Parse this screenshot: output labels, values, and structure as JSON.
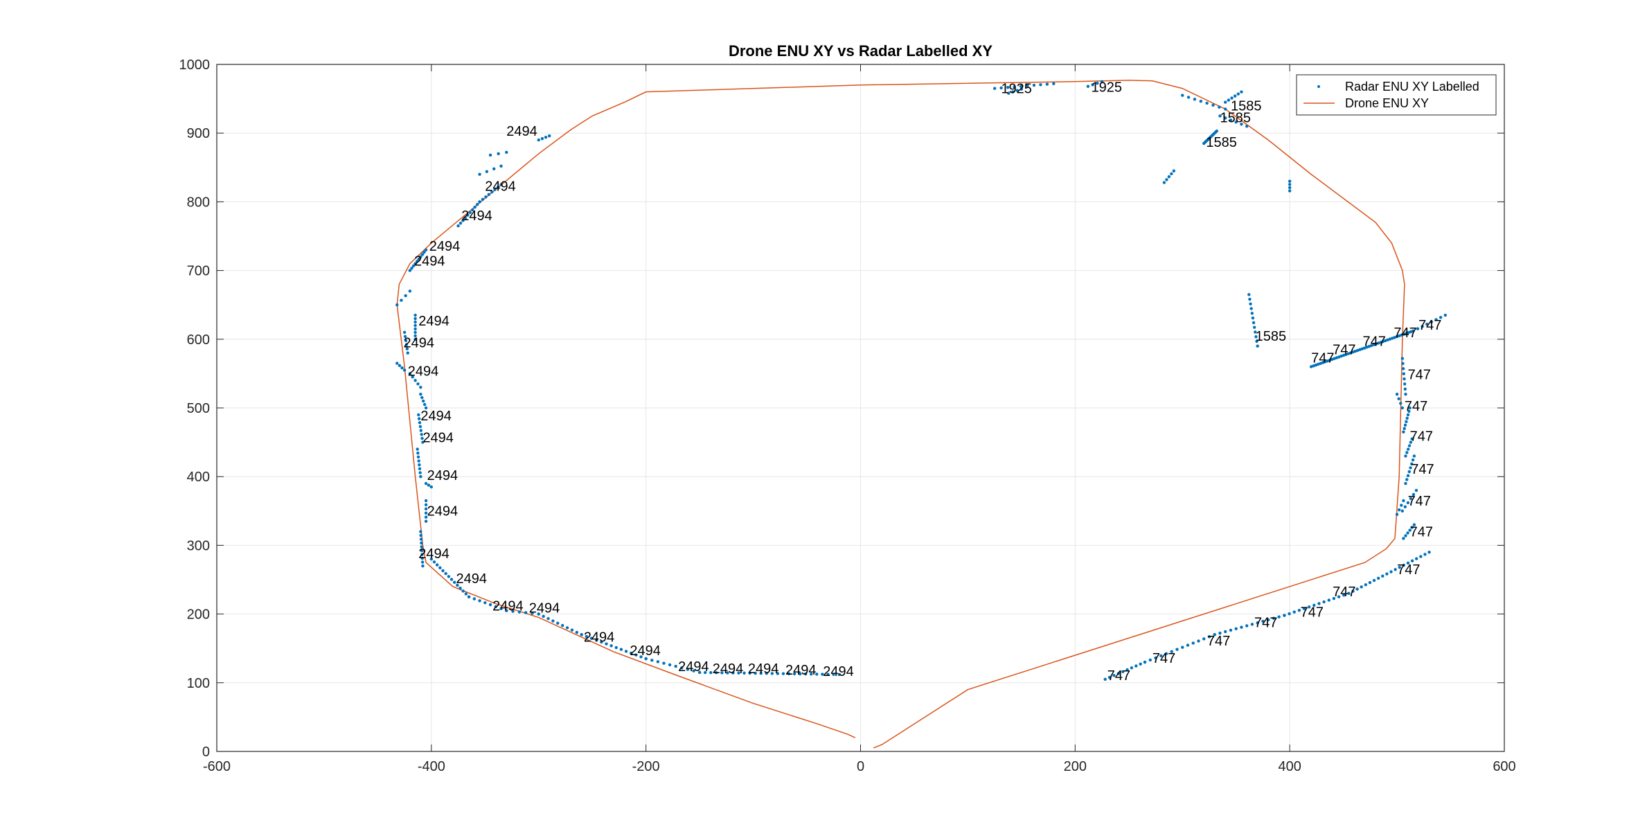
{
  "chart_data": {
    "type": "scatter",
    "title": "Drone ENU XY vs Radar Labelled XY",
    "xlabel": "",
    "ylabel": "",
    "xlim": [
      -600,
      600
    ],
    "ylim": [
      0,
      1000
    ],
    "xticks": [
      -600,
      -400,
      -200,
      0,
      200,
      400,
      600
    ],
    "yticks": [
      0,
      100,
      200,
      300,
      400,
      500,
      600,
      700,
      800,
      900,
      1000
    ],
    "grid": true,
    "legend_position": "top-right",
    "colors": {
      "radar": "#0072BD",
      "drone": "#D95319"
    },
    "legend": [
      "Radar ENU XY Labelled",
      "Drone ENU XY"
    ],
    "series": [
      {
        "name": "Radar ENU XY Labelled",
        "style": "points",
        "segments": [
          {
            "from": [
              125,
              965
            ],
            "to": [
              180,
              972
            ],
            "n": 10
          },
          {
            "from": [
              138,
              958
            ],
            "to": [
              150,
              964
            ],
            "n": 4
          },
          {
            "from": [
              212,
              968
            ],
            "to": [
              225,
              975
            ],
            "n": 4
          },
          {
            "from": [
              300,
              955
            ],
            "to": [
              340,
              935
            ],
            "n": 8
          },
          {
            "from": [
              340,
              945
            ],
            "to": [
              355,
              960
            ],
            "n": 6
          },
          {
            "from": [
              335,
              925
            ],
            "to": [
              360,
              910
            ],
            "n": 6
          },
          {
            "from": [
              320,
              885
            ],
            "to": [
              332,
              903
            ],
            "n": 12
          },
          {
            "from": [
              283,
              828
            ],
            "to": [
              292,
              845
            ],
            "n": 5
          },
          {
            "from": [
              400,
              816
            ],
            "to": [
              400,
              830
            ],
            "n": 4
          },
          {
            "from": [
              362,
              665
            ],
            "to": [
              370,
              590
            ],
            "n": 12
          },
          {
            "from": [
              420,
              560
            ],
            "to": [
              515,
              612
            ],
            "n": 45
          },
          {
            "from": [
              515,
              612
            ],
            "to": [
              545,
              635
            ],
            "n": 8
          },
          {
            "from": [
              505,
              572
            ],
            "to": [
              508,
              520
            ],
            "n": 8
          },
          {
            "from": [
              500,
              520
            ],
            "to": [
              505,
              500
            ],
            "n": 4
          },
          {
            "from": [
              506,
              465
            ],
            "to": [
              512,
              500
            ],
            "n": 8
          },
          {
            "from": [
              508,
              430
            ],
            "to": [
              514,
              455
            ],
            "n": 6
          },
          {
            "from": [
              508,
              390
            ],
            "to": [
              516,
              430
            ],
            "n": 8
          },
          {
            "from": [
              505,
              350
            ],
            "to": [
              518,
              380
            ],
            "n": 6
          },
          {
            "from": [
              500,
              345
            ],
            "to": [
              506,
              365
            ],
            "n": 4
          },
          {
            "from": [
              506,
              310
            ],
            "to": [
              516,
              330
            ],
            "n": 6
          },
          {
            "from": [
              228,
              105
            ],
            "to": [
              265,
              130
            ],
            "n": 10
          },
          {
            "from": [
              265,
              130
            ],
            "to": [
              330,
              170
            ],
            "n": 14
          },
          {
            "from": [
              330,
              170
            ],
            "to": [
              395,
              198
            ],
            "n": 14
          },
          {
            "from": [
              395,
              198
            ],
            "to": [
              455,
              230
            ],
            "n": 14
          },
          {
            "from": [
              455,
              230
            ],
            "to": [
              530,
              290
            ],
            "n": 20
          },
          {
            "from": [
              -432,
              650
            ],
            "to": [
              -420,
              670
            ],
            "n": 4
          },
          {
            "from": [
              -420,
              700
            ],
            "to": [
              -405,
              730
            ],
            "n": 10
          },
          {
            "from": [
              -375,
              765
            ],
            "to": [
              -355,
              800
            ],
            "n": 10
          },
          {
            "from": [
              -355,
              800
            ],
            "to": [
              -335,
              825
            ],
            "n": 8
          },
          {
            "from": [
              -355,
              840
            ],
            "to": [
              -335,
              852
            ],
            "n": 4
          },
          {
            "from": [
              -345,
              868
            ],
            "to": [
              -330,
              872
            ],
            "n": 3
          },
          {
            "from": [
              -300,
              890
            ],
            "to": [
              -290,
              896
            ],
            "n": 4
          },
          {
            "from": [
              -415,
              635
            ],
            "to": [
              -415,
              600
            ],
            "n": 8
          },
          {
            "from": [
              -425,
              610
            ],
            "to": [
              -422,
              580
            ],
            "n": 6
          },
          {
            "from": [
              -432,
              565
            ],
            "to": [
              -425,
              555
            ],
            "n": 4
          },
          {
            "from": [
              -420,
              550
            ],
            "to": [
              -410,
              530
            ],
            "n": 5
          },
          {
            "from": [
              -410,
              520
            ],
            "to": [
              -405,
              500
            ],
            "n": 5
          },
          {
            "from": [
              -412,
              490
            ],
            "to": [
              -408,
              450
            ],
            "n": 8
          },
          {
            "from": [
              -413,
              440
            ],
            "to": [
              -410,
              400
            ],
            "n": 8
          },
          {
            "from": [
              -405,
              390
            ],
            "to": [
              -400,
              385
            ],
            "n": 3
          },
          {
            "from": [
              -405,
              365
            ],
            "to": [
              -405,
              335
            ],
            "n": 6
          },
          {
            "from": [
              -410,
              320
            ],
            "to": [
              -408,
              270
            ],
            "n": 10
          },
          {
            "from": [
              -400,
              280
            ],
            "to": [
              -365,
              225
            ],
            "n": 14
          },
          {
            "from": [
              -365,
              225
            ],
            "to": [
              -330,
              205
            ],
            "n": 8
          },
          {
            "from": [
              -330,
              205
            ],
            "to": [
              -300,
              200
            ],
            "n": 6
          },
          {
            "from": [
              -300,
              200
            ],
            "to": [
              -260,
              170
            ],
            "n": 10
          },
          {
            "from": [
              -260,
              170
            ],
            "to": [
              -200,
              135
            ],
            "n": 14
          },
          {
            "from": [
              -200,
              135
            ],
            "to": [
              -150,
              115
            ],
            "n": 10
          },
          {
            "from": [
              -150,
              115
            ],
            "to": [
              -20,
              112
            ],
            "n": 26
          }
        ]
      },
      {
        "name": "Drone ENU XY",
        "style": "line",
        "points": [
          [
            -5,
            20
          ],
          [
            -12,
            25
          ],
          [
            -40,
            40
          ],
          [
            -100,
            70
          ],
          [
            -170,
            110
          ],
          [
            -230,
            145
          ],
          [
            -300,
            195
          ],
          [
            -340,
            215
          ],
          [
            -380,
            240
          ],
          [
            -405,
            275
          ],
          [
            -408,
            300
          ],
          [
            -415,
            400
          ],
          [
            -420,
            480
          ],
          [
            -425,
            560
          ],
          [
            -432,
            650
          ],
          [
            -430,
            680
          ],
          [
            -420,
            710
          ],
          [
            -400,
            740
          ],
          [
            -300,
            870
          ],
          [
            -270,
            905
          ],
          [
            -250,
            925
          ],
          [
            -220,
            945
          ],
          [
            -200,
            960
          ],
          [
            0,
            970
          ],
          [
            200,
            975
          ],
          [
            250,
            977
          ],
          [
            272,
            976
          ],
          [
            300,
            965
          ],
          [
            340,
            935
          ],
          [
            380,
            890
          ],
          [
            420,
            840
          ],
          [
            480,
            770
          ],
          [
            495,
            740
          ],
          [
            505,
            700
          ],
          [
            507,
            680
          ],
          [
            505,
            600
          ],
          [
            502,
            400
          ],
          [
            498,
            310
          ],
          [
            490,
            295
          ],
          [
            470,
            275
          ],
          [
            440,
            260
          ],
          [
            400,
            240
          ],
          [
            300,
            190
          ],
          [
            200,
            140
          ],
          [
            100,
            90
          ],
          [
            20,
            10
          ],
          [
            12,
            5
          ]
        ]
      }
    ],
    "annotations": [
      {
        "text": "1925",
        "x": 131,
        "y": 958
      },
      {
        "text": "1925",
        "x": 215,
        "y": 960
      },
      {
        "text": "1585",
        "x": 345,
        "y": 933
      },
      {
        "text": "1585",
        "x": 335,
        "y": 916
      },
      {
        "text": "1585",
        "x": 322,
        "y": 880
      },
      {
        "text": "1585",
        "x": 368,
        "y": 598
      },
      {
        "text": "747",
        "x": 520,
        "y": 614
      },
      {
        "text": "747",
        "x": 497,
        "y": 603
      },
      {
        "text": "747",
        "x": 468,
        "y": 590
      },
      {
        "text": "747",
        "x": 440,
        "y": 578
      },
      {
        "text": "747",
        "x": 420,
        "y": 566
      },
      {
        "text": "747",
        "x": 510,
        "y": 542
      },
      {
        "text": "747",
        "x": 507,
        "y": 496
      },
      {
        "text": "747",
        "x": 512,
        "y": 452
      },
      {
        "text": "747",
        "x": 513,
        "y": 404
      },
      {
        "text": "747",
        "x": 510,
        "y": 358
      },
      {
        "text": "747",
        "x": 512,
        "y": 313
      },
      {
        "text": "747",
        "x": 500,
        "y": 258
      },
      {
        "text": "747",
        "x": 440,
        "y": 226
      },
      {
        "text": "747",
        "x": 410,
        "y": 196
      },
      {
        "text": "747",
        "x": 367,
        "y": 181
      },
      {
        "text": "747",
        "x": 323,
        "y": 154
      },
      {
        "text": "747",
        "x": 272,
        "y": 129
      },
      {
        "text": "747",
        "x": 230,
        "y": 104
      },
      {
        "text": "2494",
        "x": -330,
        "y": 896
      },
      {
        "text": "2494",
        "x": -350,
        "y": 816
      },
      {
        "text": "2494",
        "x": -372,
        "y": 773
      },
      {
        "text": "2494",
        "x": -402,
        "y": 729
      },
      {
        "text": "2494",
        "x": -416,
        "y": 707
      },
      {
        "text": "2494",
        "x": -412,
        "y": 620
      },
      {
        "text": "2494",
        "x": -426,
        "y": 588
      },
      {
        "text": "2494",
        "x": -422,
        "y": 547
      },
      {
        "text": "2494",
        "x": -410,
        "y": 482
      },
      {
        "text": "2494",
        "x": -408,
        "y": 450
      },
      {
        "text": "2494",
        "x": -404,
        "y": 395
      },
      {
        "text": "2494",
        "x": -404,
        "y": 343
      },
      {
        "text": "2494",
        "x": -412,
        "y": 281
      },
      {
        "text": "2494",
        "x": -377,
        "y": 245
      },
      {
        "text": "2494",
        "x": -343,
        "y": 205
      },
      {
        "text": "2494",
        "x": -309,
        "y": 202
      },
      {
        "text": "2494",
        "x": -258,
        "y": 160
      },
      {
        "text": "2494",
        "x": -215,
        "y": 140
      },
      {
        "text": "2494",
        "x": -170,
        "y": 117
      },
      {
        "text": "2494",
        "x": -138,
        "y": 114
      },
      {
        "text": "2494",
        "x": -105,
        "y": 114
      },
      {
        "text": "2494",
        "x": -70,
        "y": 112
      },
      {
        "text": "2494",
        "x": -35,
        "y": 110
      }
    ]
  }
}
